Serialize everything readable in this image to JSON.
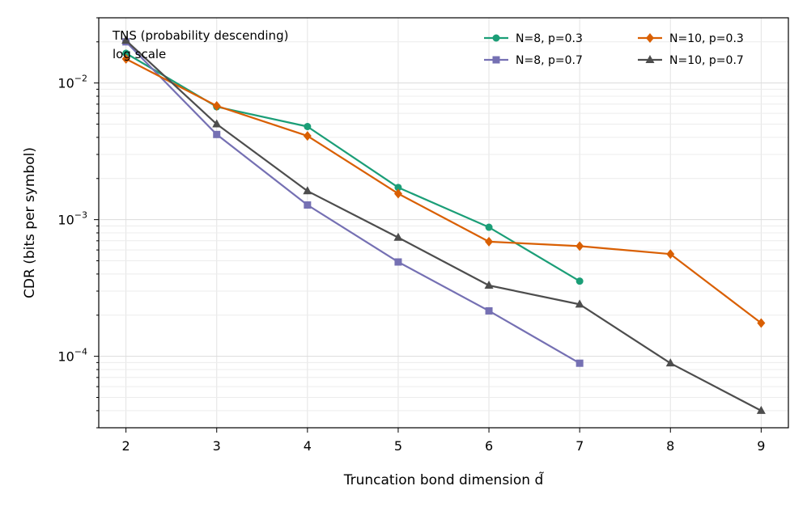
{
  "chart_data": {
    "type": "line",
    "title": "",
    "annotation": [
      "TNS (probability descending)",
      "log scale"
    ],
    "xlabel": "Truncation bond dimension d̃",
    "ylabel": "CDR (bits per symbol)",
    "yscale": "log",
    "xlim": [
      1.7,
      9.3
    ],
    "ylim": [
      3e-05,
      0.03
    ],
    "x_ticks": [
      2,
      3,
      4,
      5,
      6,
      7,
      8,
      9
    ],
    "y_ticks": [
      {
        "value": 0.01,
        "base": "10",
        "exp": "−2"
      },
      {
        "value": 0.001,
        "base": "10",
        "exp": "−3"
      },
      {
        "value": 0.0001,
        "base": "10",
        "exp": "−4"
      }
    ],
    "grid": true,
    "legend_position": "top-right",
    "series": [
      {
        "name": "N=8, p=0.3",
        "color": "#1b9e77",
        "marker": "circle",
        "x": [
          2,
          3,
          4,
          5,
          6,
          7
        ],
        "values": [
          0.0165,
          0.0067,
          0.0048,
          0.00172,
          0.00088,
          0.000355
        ]
      },
      {
        "name": "N=8, p=0.7",
        "color": "#7570b3",
        "marker": "square",
        "x": [
          2,
          3,
          4,
          5,
          6,
          7
        ],
        "values": [
          0.02,
          0.0042,
          0.00128,
          0.00049,
          0.000215,
          8.9e-05
        ]
      },
      {
        "name": "N=10, p=0.3",
        "color": "#d95f02",
        "marker": "diamond",
        "x": [
          2,
          3,
          4,
          5,
          6,
          7,
          8,
          9
        ],
        "values": [
          0.015,
          0.0068,
          0.0041,
          0.00155,
          0.00069,
          0.00064,
          0.00056,
          0.000175
        ]
      },
      {
        "name": "N=10, p=0.7",
        "color": "#4d4d4d",
        "marker": "triangle",
        "x": [
          2,
          3,
          4,
          5,
          6,
          7,
          8,
          9
        ],
        "values": [
          0.0205,
          0.005,
          0.00162,
          0.00074,
          0.00033,
          0.00024,
          8.9e-05,
          4e-05
        ]
      }
    ],
    "legend_order": [
      0,
      2,
      1,
      3
    ]
  }
}
